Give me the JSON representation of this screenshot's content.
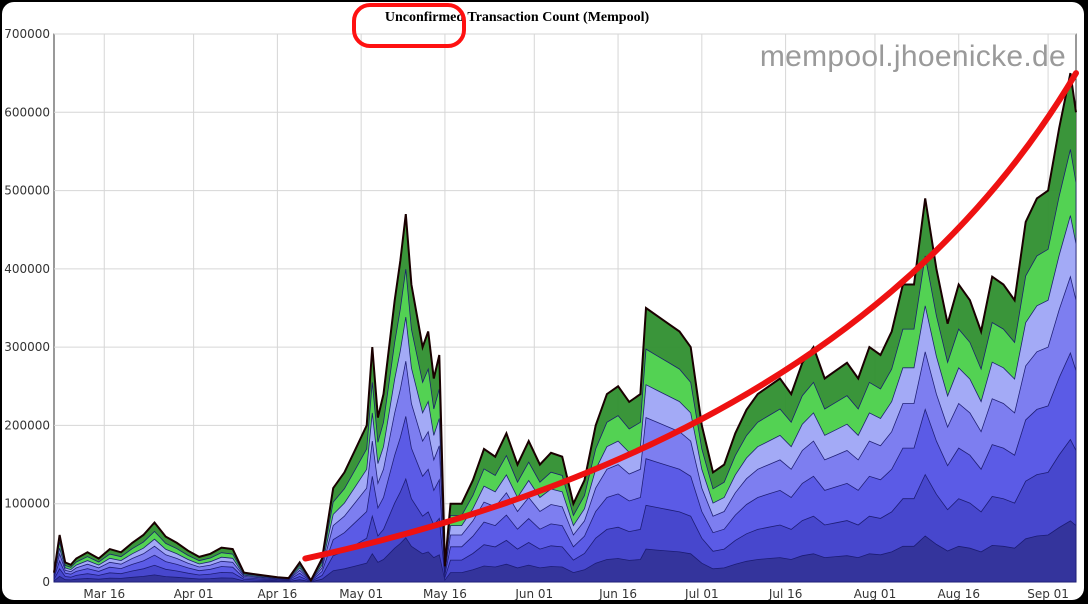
{
  "chart_data": {
    "type": "area",
    "title": "Unconfirmed Transaction Count (Mempool)",
    "watermark": "mempool.jhoenicke.de",
    "xlabel": "",
    "ylabel": "",
    "ylim": [
      0,
      700000
    ],
    "y_ticks": [
      0,
      100000,
      200000,
      300000,
      400000,
      500000,
      600000,
      700000
    ],
    "y_tick_labels": [
      "0",
      "100000",
      "200000",
      "300000",
      "400000",
      "500000",
      "600000",
      "700000"
    ],
    "x_range": [
      "2018-03-07",
      "2018-09-06"
    ],
    "x_ticks": [
      {
        "date": "2018-03-16",
        "label": "Mar 16"
      },
      {
        "date": "2018-04-01",
        "label": "Apr 01"
      },
      {
        "date": "2018-04-16",
        "label": "Apr 16"
      },
      {
        "date": "2018-05-01",
        "label": "May 01"
      },
      {
        "date": "2018-05-16",
        "label": "May 16"
      },
      {
        "date": "2018-06-01",
        "label": "Jun 01"
      },
      {
        "date": "2018-06-16",
        "label": "Jun 16"
      },
      {
        "date": "2018-07-01",
        "label": "Jul 01"
      },
      {
        "date": "2018-07-16",
        "label": "Jul 16"
      },
      {
        "date": "2018-08-01",
        "label": "Aug 01"
      },
      {
        "date": "2018-08-16",
        "label": "Aug 16"
      },
      {
        "date": "2018-09-01",
        "label": "Sep 01"
      }
    ],
    "grid": true,
    "series": [
      {
        "name": "",
        "values": [
          [
            "2018-03-07",
            12000
          ],
          [
            "2018-03-08",
            60000
          ],
          [
            "2018-03-09",
            25000
          ],
          [
            "2018-03-10",
            22000
          ],
          [
            "2018-03-11",
            30000
          ],
          [
            "2018-03-13",
            38000
          ],
          [
            "2018-03-15",
            30000
          ],
          [
            "2018-03-17",
            42000
          ],
          [
            "2018-03-19",
            38000
          ],
          [
            "2018-03-21",
            50000
          ],
          [
            "2018-03-23",
            60000
          ],
          [
            "2018-03-25",
            76000
          ],
          [
            "2018-03-27",
            58000
          ],
          [
            "2018-03-29",
            50000
          ],
          [
            "2018-03-31",
            40000
          ],
          [
            "2018-04-02",
            32000
          ],
          [
            "2018-04-04",
            36000
          ],
          [
            "2018-04-06",
            44000
          ],
          [
            "2018-04-08",
            42000
          ],
          [
            "2018-04-10",
            12000
          ],
          [
            "2018-04-12",
            10000
          ],
          [
            "2018-04-14",
            8000
          ],
          [
            "2018-04-16",
            6000
          ],
          [
            "2018-04-18",
            5000
          ],
          [
            "2018-04-20",
            25000
          ],
          [
            "2018-04-22",
            2000
          ],
          [
            "2018-04-24",
            30000
          ],
          [
            "2018-04-26",
            120000
          ],
          [
            "2018-04-28",
            140000
          ],
          [
            "2018-04-30",
            170000
          ],
          [
            "2018-05-02",
            200000
          ],
          [
            "2018-05-03",
            300000
          ],
          [
            "2018-05-04",
            210000
          ],
          [
            "2018-05-05",
            240000
          ],
          [
            "2018-05-07",
            360000
          ],
          [
            "2018-05-08",
            410000
          ],
          [
            "2018-05-09",
            470000
          ],
          [
            "2018-05-10",
            380000
          ],
          [
            "2018-05-12",
            300000
          ],
          [
            "2018-05-13",
            320000
          ],
          [
            "2018-05-14",
            260000
          ],
          [
            "2018-05-15",
            290000
          ],
          [
            "2018-05-16",
            20000
          ],
          [
            "2018-05-17",
            100000
          ],
          [
            "2018-05-19",
            100000
          ],
          [
            "2018-05-21",
            130000
          ],
          [
            "2018-05-23",
            170000
          ],
          [
            "2018-05-25",
            160000
          ],
          [
            "2018-05-27",
            190000
          ],
          [
            "2018-05-29",
            150000
          ],
          [
            "2018-05-31",
            180000
          ],
          [
            "2018-06-02",
            150000
          ],
          [
            "2018-06-04",
            165000
          ],
          [
            "2018-06-06",
            160000
          ],
          [
            "2018-06-08",
            100000
          ],
          [
            "2018-06-10",
            130000
          ],
          [
            "2018-06-12",
            200000
          ],
          [
            "2018-06-14",
            240000
          ],
          [
            "2018-06-16",
            250000
          ],
          [
            "2018-06-18",
            230000
          ],
          [
            "2018-06-20",
            240000
          ],
          [
            "2018-06-21",
            350000
          ],
          [
            "2018-06-23",
            340000
          ],
          [
            "2018-06-25",
            330000
          ],
          [
            "2018-06-27",
            320000
          ],
          [
            "2018-06-29",
            300000
          ],
          [
            "2018-07-01",
            200000
          ],
          [
            "2018-07-03",
            140000
          ],
          [
            "2018-07-05",
            150000
          ],
          [
            "2018-07-07",
            190000
          ],
          [
            "2018-07-09",
            220000
          ],
          [
            "2018-07-11",
            240000
          ],
          [
            "2018-07-13",
            250000
          ],
          [
            "2018-07-15",
            260000
          ],
          [
            "2018-07-17",
            240000
          ],
          [
            "2018-07-19",
            280000
          ],
          [
            "2018-07-21",
            300000
          ],
          [
            "2018-07-23",
            260000
          ],
          [
            "2018-07-25",
            270000
          ],
          [
            "2018-07-27",
            280000
          ],
          [
            "2018-07-29",
            260000
          ],
          [
            "2018-07-31",
            300000
          ],
          [
            "2018-08-02",
            290000
          ],
          [
            "2018-08-04",
            320000
          ],
          [
            "2018-08-06",
            380000
          ],
          [
            "2018-08-08",
            380000
          ],
          [
            "2018-08-10",
            490000
          ],
          [
            "2018-08-12",
            400000
          ],
          [
            "2018-08-14",
            330000
          ],
          [
            "2018-08-16",
            380000
          ],
          [
            "2018-08-18",
            360000
          ],
          [
            "2018-08-20",
            320000
          ],
          [
            "2018-08-22",
            390000
          ],
          [
            "2018-08-24",
            380000
          ],
          [
            "2018-08-26",
            360000
          ],
          [
            "2018-08-28",
            460000
          ],
          [
            "2018-08-30",
            490000
          ],
          [
            "2018-09-01",
            500000
          ],
          [
            "2018-09-03",
            580000
          ],
          [
            "2018-09-05",
            650000
          ],
          [
            "2018-09-06",
            600000
          ]
        ]
      }
    ],
    "annotations": [
      {
        "type": "trend-curve",
        "color": "#ee1111",
        "from": [
          "2018-04-21",
          30000
        ],
        "to": [
          "2018-09-06",
          650000
        ]
      },
      {
        "type": "oval-highlight",
        "color": "#ee1111",
        "target": "title"
      }
    ]
  }
}
